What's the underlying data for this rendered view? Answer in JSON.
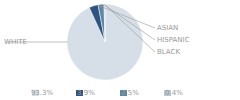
{
  "chart_data": {
    "type": "pie",
    "categories": [
      "WHITE",
      "ASIAN",
      "HISPANIC",
      "BLACK"
    ],
    "values": [
      93.3,
      3.9,
      2.5,
      0.4
    ],
    "value_labels": [
      "93.3%",
      "3.9%",
      "2.5%",
      "0.4%"
    ],
    "colors": [
      "#d6dfe8",
      "#2e5480",
      "#5b87a8",
      "#b8c8d4"
    ],
    "legend": "bottom"
  }
}
